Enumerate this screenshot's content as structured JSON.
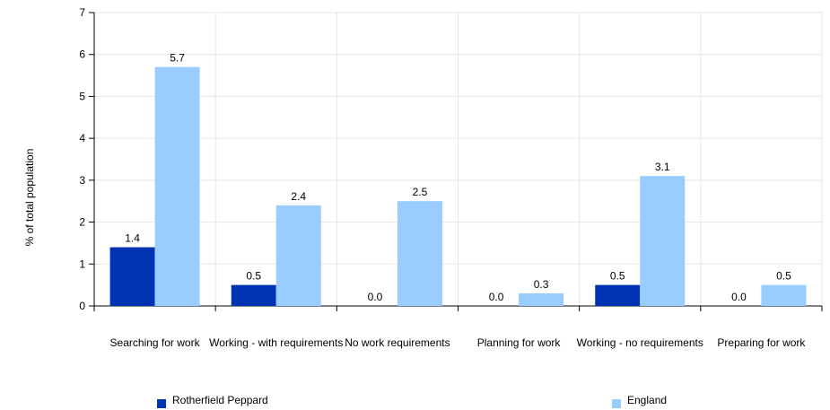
{
  "chart_data": {
    "type": "bar",
    "categories": [
      "Searching for work",
      "Working - with requirements",
      "No work requirements",
      "Planning for work",
      "Working - no requirements",
      "Preparing for work"
    ],
    "series": [
      {
        "name": "Rotherfield Peppard",
        "values": [
          1.4,
          0.5,
          0.0,
          0.0,
          0.5,
          0.0
        ],
        "labels": [
          "1.4",
          "0.5",
          "0.0",
          "0.0",
          "0.5",
          "0.0"
        ],
        "color": "#0033b3"
      },
      {
        "name": "England",
        "values": [
          5.7,
          2.4,
          2.5,
          0.3,
          3.1,
          0.5
        ],
        "labels": [
          "5.7",
          "2.4",
          "2.5",
          "0.3",
          "3.1",
          "0.5"
        ],
        "color": "#99ccff"
      }
    ],
    "yticks": [
      "0",
      "1",
      "2",
      "3",
      "4",
      "5",
      "6",
      "7"
    ],
    "ylim": [
      0,
      7
    ],
    "ylabel": "% of total population",
    "xlabel": "",
    "grid": true,
    "legend_position": "bottom"
  }
}
